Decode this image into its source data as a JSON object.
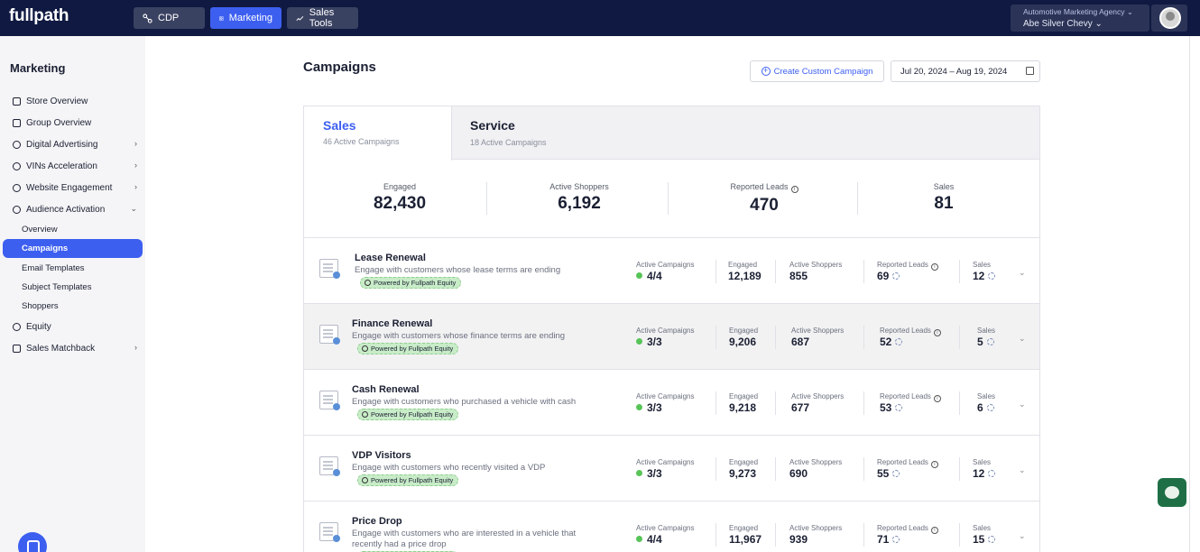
{
  "topbar": {
    "logo": "fullpath",
    "nav": [
      {
        "label": "CDP",
        "icon": "cdp-icon"
      },
      {
        "label": "Marketing",
        "icon": "grid-icon"
      },
      {
        "label": "Sales Tools",
        "icon": "trend-icon"
      }
    ],
    "agency_name": "Automotive Marketing Agency",
    "dealer_name": "Abe Silver Chevy"
  },
  "sidebar": {
    "title": "Marketing",
    "items": [
      {
        "label": "Store Overview",
        "icon": "store-icon"
      },
      {
        "label": "Group Overview",
        "icon": "group-icon"
      },
      {
        "label": "Digital Advertising",
        "icon": "digital-advertising-icon"
      },
      {
        "label": "VINs Acceleration",
        "icon": "vins-icon"
      },
      {
        "label": "Website Engagement",
        "icon": "globe-icon"
      },
      {
        "label": "Audience Activation",
        "icon": "audience-icon"
      }
    ],
    "sub_items": [
      "Overview",
      "Campaigns",
      "Email Templates",
      "Subject Templates",
      "Shoppers"
    ],
    "more_items": [
      {
        "label": "Equity",
        "icon": "equity-icon"
      },
      {
        "label": "Sales Matchback",
        "icon": "matchback-icon"
      }
    ]
  },
  "main": {
    "title": "Campaigns",
    "create_button": "Create Custom Campaign",
    "date_range": "Jul 20, 2024 – Aug 19, 2024",
    "tabs": [
      {
        "label": "Sales",
        "sub": "46 Active Campaigns"
      },
      {
        "label": "Service",
        "sub": "18 Active Campaigns"
      }
    ],
    "summary": [
      {
        "label": "Engaged",
        "value": "82,430"
      },
      {
        "label": "Active Shoppers",
        "value": "6,192"
      },
      {
        "label": "Reported Leads",
        "value": "470"
      },
      {
        "label": "Sales",
        "value": "81"
      }
    ],
    "metric_labels": {
      "active_campaigns": "Active Campaigns",
      "engaged": "Engaged",
      "active_shoppers": "Active Shoppers",
      "reported_leads": "Reported Leads",
      "sales": "Sales"
    },
    "badge_label": "Powered by Fullpath Equity",
    "campaigns": [
      {
        "title": "Lease Renewal",
        "desc": "Engage with customers whose lease terms are ending",
        "active": "4/4",
        "engaged": "12,189",
        "shoppers": "855",
        "leads": "69",
        "sales": "12"
      },
      {
        "title": "Finance Renewal",
        "desc": "Engage with customers whose finance terms are ending",
        "active": "3/3",
        "engaged": "9,206",
        "shoppers": "687",
        "leads": "52",
        "sales": "5"
      },
      {
        "title": "Cash Renewal",
        "desc": "Engage with customers who purchased a vehicle with cash",
        "active": "3/3",
        "engaged": "9,218",
        "shoppers": "677",
        "leads": "53",
        "sales": "6"
      },
      {
        "title": "VDP Visitors",
        "desc": "Engage with customers who recently visited a VDP",
        "active": "3/3",
        "engaged": "9,273",
        "shoppers": "690",
        "leads": "55",
        "sales": "12"
      },
      {
        "title": "Price Drop",
        "desc": "Engage with customers who are interested in a vehicle that recently had a price drop",
        "active": "4/4",
        "engaged": "11,967",
        "shoppers": "939",
        "leads": "71",
        "sales": "15"
      }
    ]
  },
  "colors": {
    "navy": "#0f1941",
    "accent": "#3d5ff0",
    "green_dot": "#58c458"
  }
}
